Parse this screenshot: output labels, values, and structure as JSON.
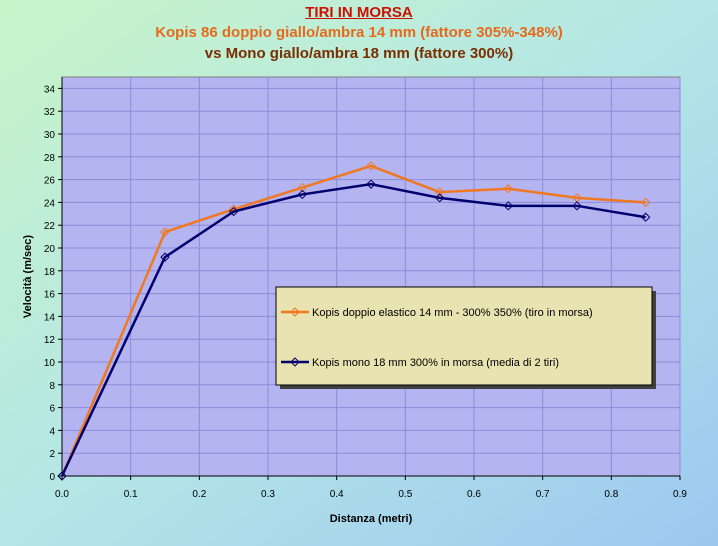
{
  "colors": {
    "plot_bg": "#b4b4f0",
    "series1": "#f07820",
    "series2": "#00006e",
    "legend_bg": "#e8e3b0",
    "title1": "#cc1100",
    "title2": "#e46a1c",
    "title3": "#7a2d00"
  },
  "chart_data": {
    "type": "line",
    "title": "TIRI  IN MORSA",
    "subtitle": "Kopis 86 doppio giallo/ambra 14 mm (fattore 305%-348%)",
    "subtitle2": "vs Mono giallo/ambra 18 mm  (fattore 300%)",
    "xlabel": "Distanza (metri)",
    "ylabel": "Velocità (m/sec)",
    "xlim": [
      0,
      0.9
    ],
    "ylim": [
      0,
      35
    ],
    "x_ticks": [
      "0.0",
      "0.1",
      "0.2",
      "0.3",
      "0.4",
      "0.5",
      "0.6",
      "0.7",
      "0.8",
      "0.9"
    ],
    "y_ticks": [
      "0",
      "2",
      "4",
      "6",
      "8",
      "10",
      "12",
      "14",
      "16",
      "18",
      "20",
      "22",
      "24",
      "26",
      "28",
      "30",
      "32",
      "34"
    ],
    "grid": true,
    "legend_position": "center-right",
    "series": [
      {
        "name": "Kopis doppio elastico 14 mm - 300% 350% (tiro in morsa)",
        "x": [
          0,
          0.15,
          0.25,
          0.35,
          0.45,
          0.55,
          0.65,
          0.75,
          0.85
        ],
        "values": [
          0,
          21.4,
          23.4,
          25.3,
          27.2,
          24.9,
          25.2,
          24.4,
          24.0
        ]
      },
      {
        "name": "Kopis mono 18 mm 300% in morsa (media di 2 tiri)",
        "x": [
          0,
          0.15,
          0.25,
          0.35,
          0.45,
          0.55,
          0.65,
          0.75,
          0.85
        ],
        "values": [
          0,
          19.2,
          23.2,
          24.7,
          25.6,
          24.4,
          23.7,
          23.7,
          22.7
        ]
      }
    ]
  }
}
